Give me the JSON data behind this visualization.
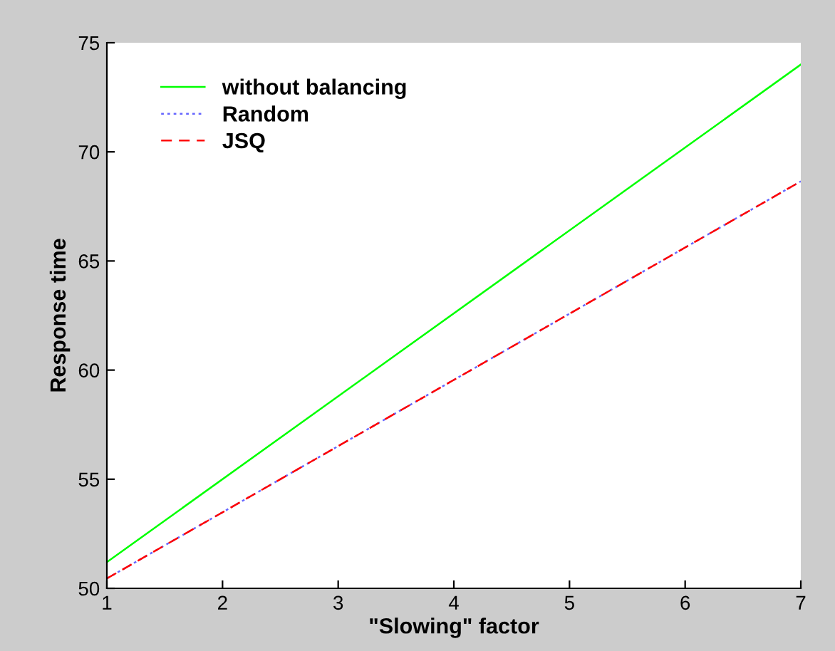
{
  "chart_data": {
    "type": "line",
    "xlabel": "\"Slowing\" factor",
    "ylabel": "Response time",
    "x": [
      1,
      7
    ],
    "series": [
      {
        "name": "without balancing",
        "color": "#00ff00",
        "values": [
          51.2,
          74.0
        ],
        "line_style": "solid"
      },
      {
        "name": "Random",
        "color": "#6666ff",
        "values": [
          50.45,
          68.65
        ],
        "line_style": "dotted"
      },
      {
        "name": "JSQ",
        "color": "#ff0000",
        "values": [
          50.45,
          68.65
        ],
        "line_style": "dashed"
      }
    ],
    "xlim": [
      1,
      7
    ],
    "xticks": [
      1,
      2,
      3,
      4,
      5,
      6,
      7
    ],
    "ylim": [
      50,
      75
    ],
    "yticks": [
      50,
      55,
      60,
      65,
      70,
      75
    ],
    "grid": false,
    "legend": "top left",
    "marker": "none"
  }
}
